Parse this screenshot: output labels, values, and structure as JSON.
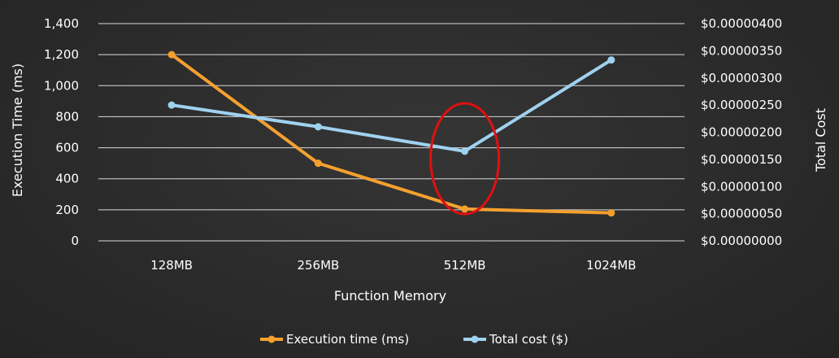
{
  "chart_data": {
    "type": "line",
    "categories": [
      "128MB",
      "256MB",
      "512MB",
      "1024MB"
    ],
    "xlabel": "Function Memory",
    "ylabel": "Execution Time (ms)",
    "y2label": "Total Cost",
    "ylim": [
      0,
      1400
    ],
    "y2lim": [
      0,
      4e-06
    ],
    "yticks": [
      "0",
      "200",
      "400",
      "600",
      "800",
      "1,000",
      "1,200",
      "1,400"
    ],
    "y2ticks": [
      "$0.00000000",
      "$0.00000050",
      "$0.00000100",
      "$0.00000150",
      "$0.00000200",
      "$0.00000250",
      "$0.00000300",
      "$0.00000350",
      "$0.00000400"
    ],
    "grid": true,
    "legend_position": "bottom",
    "series": [
      {
        "name": "Execution time (ms)",
        "axis": "left",
        "color": "#f4a030",
        "values": [
          1200,
          500,
          205,
          180
        ]
      },
      {
        "name": "Total cost ($)",
        "axis": "right",
        "color": "#9fd2ef",
        "values": [
          2.5e-06,
          2.1e-06,
          1.65e-06,
          3.33e-06
        ]
      }
    ],
    "annotation": {
      "type": "ellipse",
      "category": "512MB",
      "color": "#e01010"
    }
  }
}
